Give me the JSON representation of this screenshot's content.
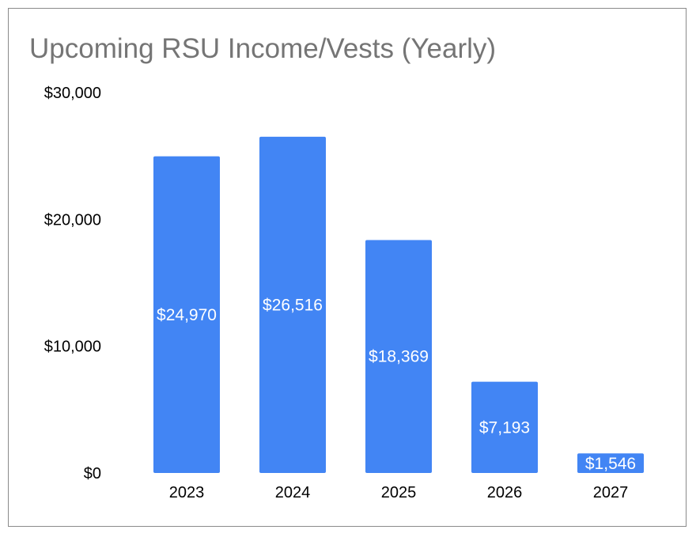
{
  "chart_data": {
    "type": "bar",
    "title": "Upcoming RSU Income/Vests (Yearly)",
    "categories": [
      "2023",
      "2024",
      "2025",
      "2026",
      "2027"
    ],
    "values": [
      24970,
      26516,
      18369,
      7193,
      1546
    ],
    "data_labels": [
      "$24,970",
      "$26,516",
      "$18,369",
      "$7,193",
      "$1,546"
    ],
    "y_ticks": [
      0,
      10000,
      20000,
      30000
    ],
    "y_tick_labels": [
      "$0",
      "$10,000",
      "$20,000",
      "$30,000"
    ],
    "ylim": [
      0,
      30000
    ],
    "xlabel": "",
    "ylabel": "",
    "grid": false,
    "legend": "none",
    "bar_color": "#4285f4"
  }
}
